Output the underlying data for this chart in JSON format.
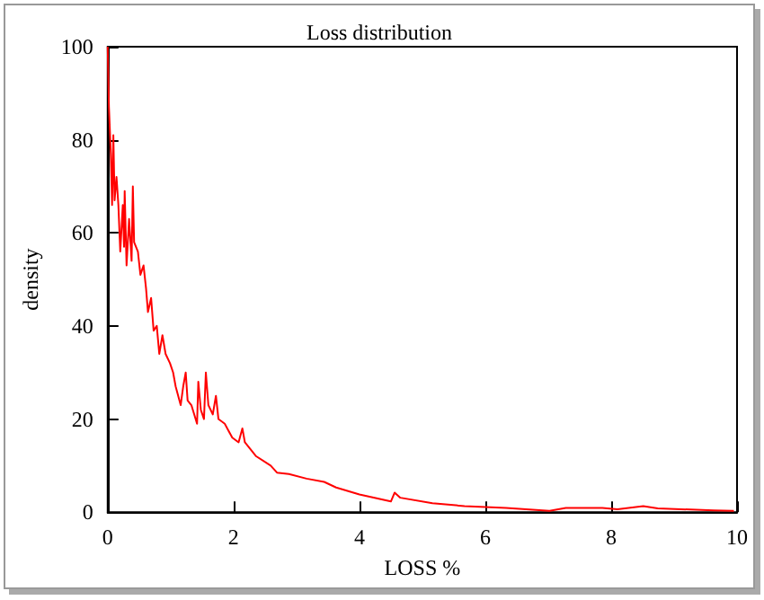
{
  "chart_data": {
    "type": "line",
    "title": "Loss distribution",
    "xlabel": "LOSS %",
    "ylabel": "density",
    "xlim": [
      0,
      10
    ],
    "xticks": [
      0,
      2,
      4,
      6,
      8,
      10
    ],
    "ylim": [
      0,
      100
    ],
    "yticks": [
      0,
      20,
      40,
      60,
      80,
      100
    ],
    "grid": false,
    "marker": "none",
    "line_style": "solid",
    "series": [
      {
        "color": "#ff0000",
        "x": [
          0,
          0.02,
          0.05,
          0.07,
          0.09,
          0.11,
          0.14,
          0.17,
          0.2,
          0.24,
          0.26,
          0.27,
          0.3,
          0.34,
          0.38,
          0.4,
          0.42,
          0.48,
          0.52,
          0.57,
          0.61,
          0.64,
          0.69,
          0.73,
          0.78,
          0.82,
          0.87,
          0.92,
          0.99,
          1.04,
          1.08,
          1.16,
          1.2,
          1.24,
          1.27,
          1.33,
          1.42,
          1.44,
          1.48,
          1.53,
          1.56,
          1.6,
          1.67,
          1.72,
          1.76,
          1.86,
          1.98,
          2.08,
          2.14,
          2.18,
          2.36,
          2.59,
          2.69,
          2.88,
          3.16,
          3.44,
          3.63,
          4,
          4.5,
          4.56,
          4.65,
          5.16,
          5.67,
          6.33,
          7.02,
          7.28,
          7.86,
          8.1,
          8.51,
          8.74,
          9.63,
          9.95
        ],
        "values": [
          100,
          87,
          77,
          66,
          81,
          67,
          72,
          66,
          56,
          66,
          57,
          69,
          53,
          63,
          54,
          70,
          58,
          56,
          51,
          53,
          48,
          43,
          46,
          39,
          40,
          34,
          38,
          34,
          32,
          30,
          27,
          23,
          27,
          30,
          24,
          23,
          19,
          28,
          22,
          20,
          30,
          23,
          21,
          25,
          20,
          19,
          16,
          15,
          18,
          15,
          12,
          10,
          8.5,
          8.2,
          7.2,
          6.5,
          5.3,
          3.8,
          2.3,
          4.2,
          3.1,
          1.9,
          1.3,
          0.9,
          0.3,
          0.9,
          0.9,
          0.6,
          1.3,
          0.8,
          0.4,
          0.3
        ]
      }
    ]
  }
}
